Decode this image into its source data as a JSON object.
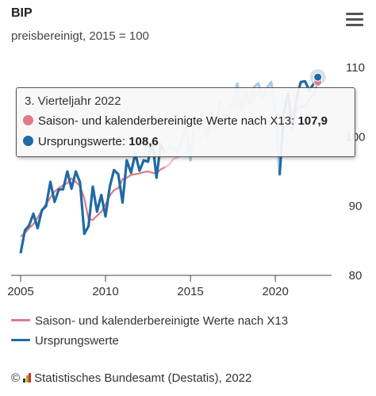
{
  "header": {
    "title": "BIP",
    "subtitle": "preisbereinigt, 2015 = 100"
  },
  "menu": {
    "icon": "hamburger-menu-icon"
  },
  "colors": {
    "series1": "#e07a87",
    "series2": "#1f6aa5",
    "axis": "#444",
    "highlight": "#a9cbe8"
  },
  "tooltip": {
    "heading": "3. Vierteljahr 2022",
    "rows": [
      {
        "label": "Saison- und kalenderbereinigte Werte nach X13:",
        "value": "107,9"
      },
      {
        "label": "Ursprungswerte:",
        "value": "108,6"
      }
    ]
  },
  "legend": [
    {
      "label": "Saison- und kalenderbereinigte Werte nach X13"
    },
    {
      "label": "Ursprungswerte"
    }
  ],
  "credits": {
    "symbol": "©",
    "text": "Statistisches Bundesamt (Destatis), 2022"
  },
  "chart_data": {
    "type": "line",
    "title": "BIP",
    "subtitle": "preisbereinigt, 2015 = 100",
    "x_ticks": [
      2005,
      2010,
      2015,
      2020
    ],
    "y_ticks": [
      80,
      90,
      100,
      110
    ],
    "xlim": [
      2005,
      2022.75
    ],
    "ylim": [
      80,
      110
    ],
    "y_axis_position": "right",
    "grid": false,
    "legend_position": "bottom",
    "x": [
      2005.0,
      2005.25,
      2005.5,
      2005.75,
      2006.0,
      2006.25,
      2006.5,
      2006.75,
      2007.0,
      2007.25,
      2007.5,
      2007.75,
      2008.0,
      2008.25,
      2008.5,
      2008.75,
      2009.0,
      2009.25,
      2009.5,
      2009.75,
      2010.0,
      2010.25,
      2010.5,
      2010.75,
      2011.0,
      2011.25,
      2011.5,
      2011.75,
      2012.0,
      2012.25,
      2012.5,
      2012.75,
      2013.0,
      2013.25,
      2013.5,
      2013.75,
      2014.0,
      2014.25,
      2014.5,
      2014.75,
      2015.0,
      2015.25,
      2015.5,
      2015.75,
      2016.0,
      2016.25,
      2016.5,
      2016.75,
      2017.0,
      2017.25,
      2017.5,
      2017.75,
      2018.0,
      2018.25,
      2018.5,
      2018.75,
      2019.0,
      2019.25,
      2019.5,
      2019.75,
      2020.0,
      2020.25,
      2020.5,
      2020.75,
      2021.0,
      2021.25,
      2021.5,
      2021.75,
      2022.0,
      2022.25,
      2022.5
    ],
    "series": [
      {
        "name": "Saison- und kalenderbereinigte Werte nach X13",
        "values": [
          85.6,
          86.1,
          86.8,
          87.4,
          88.3,
          89.4,
          90.3,
          91.2,
          92.1,
          92.6,
          93.0,
          93.3,
          94.0,
          93.5,
          92.9,
          91.1,
          88.1,
          88.0,
          88.6,
          89.2,
          90.2,
          91.5,
          92.3,
          92.6,
          93.9,
          94.1,
          94.5,
          94.6,
          94.7,
          94.9,
          95.0,
          94.8,
          94.7,
          95.3,
          95.6,
          96.0,
          96.8,
          97.0,
          97.3,
          97.9,
          98.6,
          98.9,
          99.4,
          100.2,
          100.8,
          101.2,
          101.4,
          101.9,
          102.9,
          103.4,
          104.2,
          104.9,
          105.3,
          105.8,
          105.4,
          105.8,
          106.5,
          105.9,
          106.2,
          106.3,
          104.2,
          94.9,
          103.1,
          103.5,
          101.8,
          103.9,
          104.4,
          104.3,
          105.5,
          106.0,
          107.9
        ]
      },
      {
        "name": "Ursprungswerte",
        "values": [
          83.2,
          86.5,
          87.2,
          88.9,
          86.8,
          89.4,
          90.0,
          93.5,
          90.6,
          92.4,
          92.4,
          95.0,
          92.5,
          95.0,
          93.4,
          86.0,
          87.1,
          92.8,
          89.2,
          91.6,
          88.5,
          92.8,
          95.2,
          94.6,
          90.5,
          96.6,
          94.8,
          97.6,
          95.1,
          96.6,
          96.4,
          99.5,
          94.1,
          98.9,
          97.6,
          98.6,
          98.5,
          97.7,
          99.7,
          101.5,
          96.6,
          102.2,
          101.1,
          103.2,
          99.8,
          103.5,
          101.6,
          105.0,
          103.8,
          104.1,
          104.9,
          107.7,
          103.8,
          106.5,
          104.6,
          107.2,
          107.7,
          105.5,
          107.0,
          107.9,
          103.8,
          94.5,
          103.4,
          106.2,
          101.3,
          105.6,
          107.9,
          108.0,
          106.7,
          107.6,
          108.6
        ]
      }
    ]
  }
}
